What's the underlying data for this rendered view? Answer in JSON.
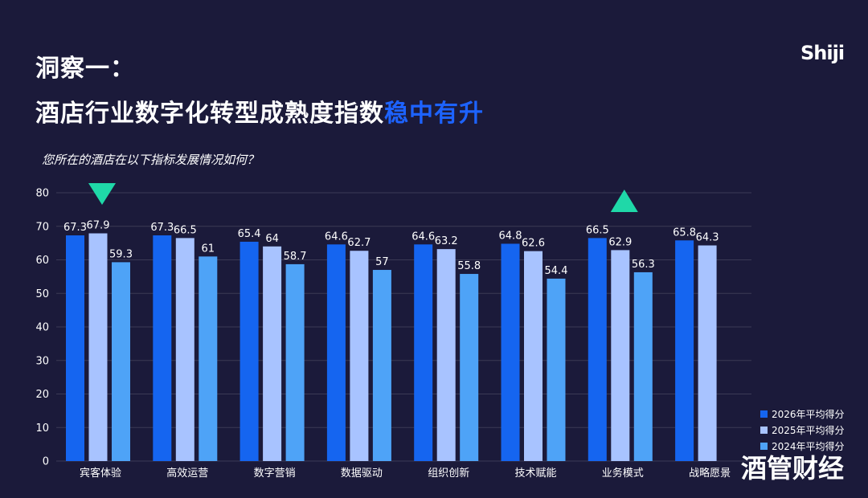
{
  "header": {
    "title_line1": "洞察一：",
    "title_line2_main": "酒店行业数字化转型成熟度指数",
    "title_line2_highlight": "稳中有升"
  },
  "brand": {
    "logo_text": "Shiji",
    "watermark_text": "酒管财经"
  },
  "colors": {
    "background": "#1b1a3a",
    "highlight": "#1d63ff",
    "series_2026": "#1565f0",
    "series_2025": "#a8c3ff",
    "series_2024": "#4ea3f7",
    "marker": "#1fd8a8"
  },
  "chart_data": {
    "type": "bar",
    "title": "您所在的酒店在以下指标发展情况如何？",
    "categories": [
      "宾客体验",
      "高效运营",
      "数字营销",
      "数据驱动",
      "组织创新",
      "技术赋能",
      "业务模式",
      "战略愿景"
    ],
    "series": [
      {
        "name": "2026年平均得分",
        "values": [
          67.3,
          67.3,
          65.4,
          64.6,
          64.6,
          64.8,
          66.5,
          65.8
        ]
      },
      {
        "name": "2025年平均得分",
        "values": [
          67.9,
          66.5,
          64,
          62.7,
          63.2,
          62.6,
          62.9,
          64.3
        ]
      },
      {
        "name": "2024年平均得分",
        "values": [
          59.3,
          61,
          58.7,
          57,
          55.8,
          54.4,
          56.3,
          null
        ]
      }
    ],
    "y_ticks": [
      0,
      10,
      20,
      30,
      40,
      50,
      60,
      70,
      80
    ],
    "ylim": [
      0,
      80
    ],
    "grid": true,
    "legend_position": "bottom-right",
    "markers": [
      {
        "category": "宾客体验",
        "shape": "triangle-down"
      },
      {
        "category": "业务模式",
        "shape": "triangle-up"
      }
    ]
  }
}
